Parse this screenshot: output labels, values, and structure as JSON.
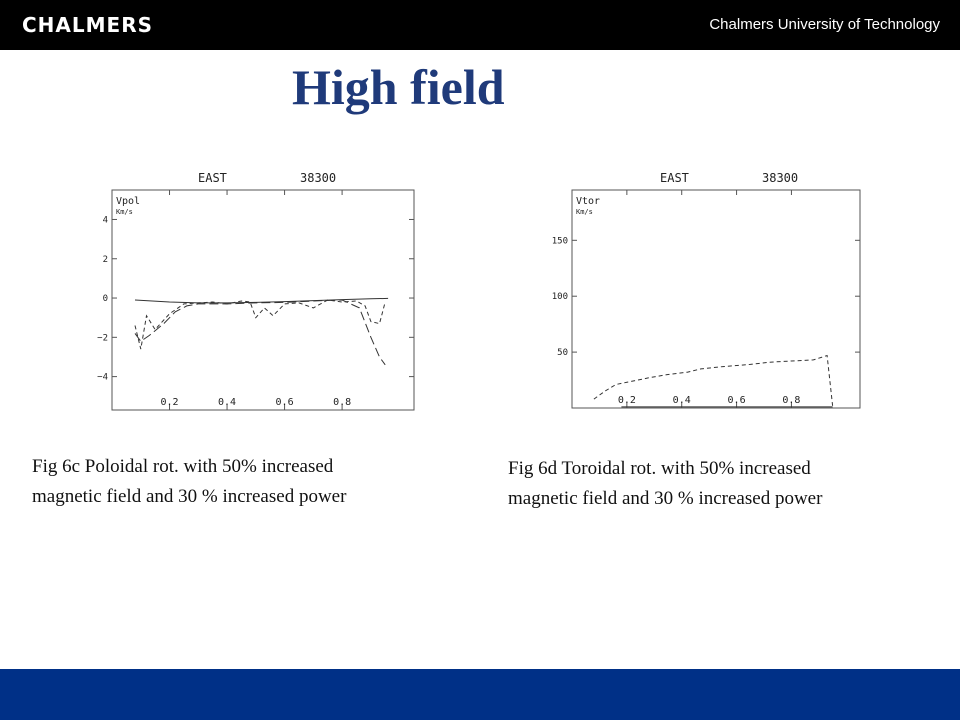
{
  "header": {
    "logo_text": "CHALMERS",
    "university": "Chalmers University of Technology"
  },
  "slide": {
    "title": "High field",
    "caption_left_1": "Fig 6c Poloidal rot. with  50% increased",
    "caption_left_2": "magnetic field and 30 % increased power",
    "caption_right_1": "Fig 6d Toroidal rot. with  50% increased",
    "caption_right_2": "magnetic field and 30 % increased power"
  },
  "chart_data": [
    {
      "type": "line",
      "title": "EAST",
      "shot": "38300",
      "ylabel": "Vpol",
      "yunit": "Km/s",
      "xlim": [
        0.0,
        1.05
      ],
      "ylim": [
        -5.7,
        5.5
      ],
      "xticks": [
        "0.2",
        "0.4",
        "0.6",
        "0.8"
      ],
      "yticks": [
        "4",
        "2",
        "0",
        "−2",
        "−4"
      ],
      "series": [
        {
          "style": "solid",
          "x": [
            0.08,
            0.2,
            0.3,
            0.4,
            0.5,
            0.6,
            0.7,
            0.8,
            0.9,
            0.96
          ],
          "y": [
            -0.1,
            -0.2,
            -0.25,
            -0.25,
            -0.22,
            -0.18,
            -0.13,
            -0.08,
            -0.04,
            -0.02
          ]
        },
        {
          "style": "dashed",
          "x": [
            0.08,
            0.1,
            0.12,
            0.15,
            0.2,
            0.25,
            0.3,
            0.35,
            0.4,
            0.45,
            0.48,
            0.5,
            0.53,
            0.56,
            0.6,
            0.65,
            0.7,
            0.75,
            0.8,
            0.85,
            0.88,
            0.9,
            0.93,
            0.95
          ],
          "y": [
            -1.4,
            -2.6,
            -0.9,
            -1.6,
            -0.8,
            -0.3,
            -0.25,
            -0.2,
            -0.3,
            -0.15,
            -0.2,
            -1.0,
            -0.5,
            -0.9,
            -0.3,
            -0.25,
            -0.5,
            -0.1,
            -0.2,
            -0.15,
            -0.4,
            -1.2,
            -1.3,
            -0.2
          ]
        },
        {
          "style": "longdash",
          "x": [
            0.08,
            0.1,
            0.13,
            0.18,
            0.22,
            0.26,
            0.3,
            0.4,
            0.5,
            0.6,
            0.7,
            0.8,
            0.86,
            0.9,
            0.93,
            0.95
          ],
          "y": [
            -1.8,
            -2.2,
            -1.9,
            -1.3,
            -0.7,
            -0.4,
            -0.3,
            -0.3,
            -0.25,
            -0.22,
            -0.15,
            -0.1,
            -0.5,
            -2.0,
            -3.0,
            -3.4
          ]
        }
      ]
    },
    {
      "type": "line",
      "title": "EAST",
      "shot": "38300",
      "ylabel": "Vtor",
      "yunit": "Km/s",
      "xlim": [
        0.0,
        1.05
      ],
      "ylim": [
        0,
        195
      ],
      "xticks": [
        "0.2",
        "0.4",
        "0.6",
        "0.8"
      ],
      "yticks": [
        "150",
        "100",
        "50"
      ],
      "series": [
        {
          "style": "dashed",
          "x": [
            0.08,
            0.12,
            0.16,
            0.2,
            0.28,
            0.35,
            0.42,
            0.47,
            0.55,
            0.65,
            0.72,
            0.8,
            0.88,
            0.93,
            0.95
          ],
          "y": [
            8,
            15,
            21,
            23,
            27,
            30,
            32,
            35,
            37,
            39,
            41,
            42,
            43,
            47,
            2
          ]
        },
        {
          "style": "solid",
          "x": [
            0.18,
            0.95
          ],
          "y": [
            1,
            1
          ]
        }
      ]
    }
  ]
}
